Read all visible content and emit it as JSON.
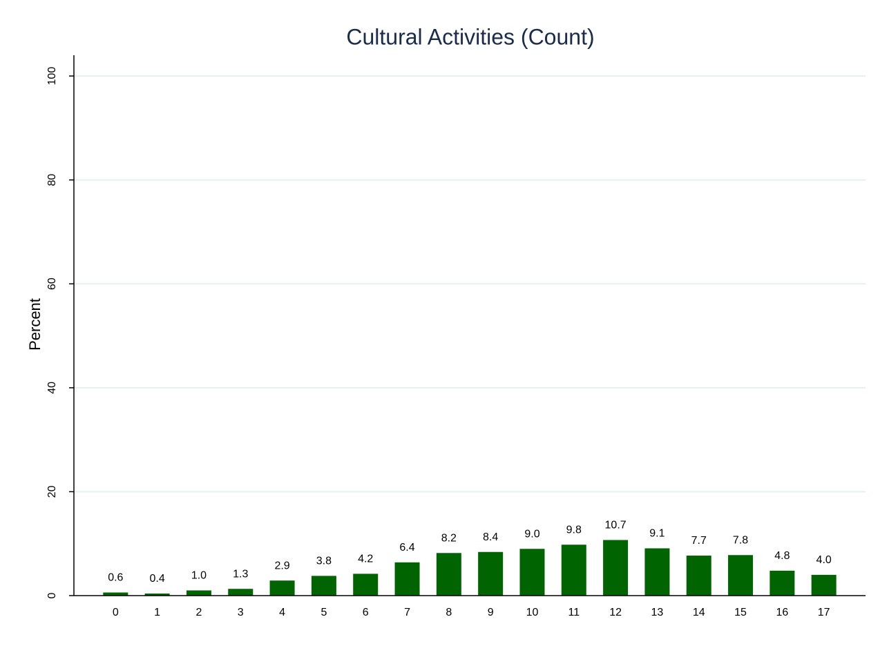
{
  "chart_data": {
    "type": "bar",
    "title": "Cultural Activities (Count)",
    "y_label": "Percent",
    "categories": [
      "0",
      "1",
      "2",
      "3",
      "4",
      "5",
      "6",
      "7",
      "8",
      "9",
      "10",
      "11",
      "12",
      "13",
      "14",
      "15",
      "16",
      "17"
    ],
    "values": [
      0.6,
      0.4,
      1.0,
      1.3,
      2.9,
      3.8,
      4.2,
      6.4,
      8.2,
      8.4,
      9.0,
      9.8,
      10.7,
      9.1,
      7.7,
      7.8,
      4.8,
      4.0
    ],
    "value_labels": [
      "0.6",
      "0.4",
      "1.0",
      "1.3",
      "2.9",
      "3.8",
      "4.2",
      "6.4",
      "8.2",
      "8.4",
      "9.0",
      "9.8",
      "10.7",
      "9.1",
      "7.7",
      "7.8",
      "4.8",
      "4.0"
    ],
    "color": "#006400",
    "ylim": [
      0,
      104
    ],
    "yticks": [
      0,
      20,
      40,
      60,
      80,
      100
    ],
    "grid": true
  }
}
